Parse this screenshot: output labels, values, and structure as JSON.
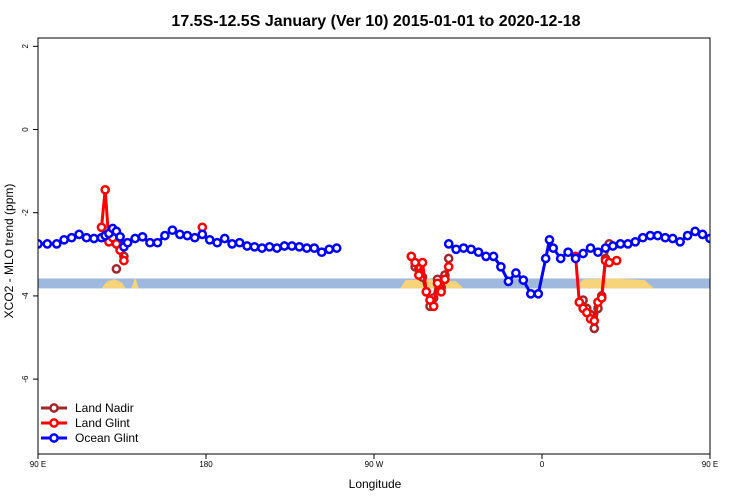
{
  "chart_data": {
    "type": "line",
    "title": "17.5S-12.5S January (Ver 10)   2015-01-01 to 2020-12-18",
    "xlabel": "Longitude",
    "ylabel": "XCO2 - MLO trend (ppm)",
    "xlim": [
      90,
      450
    ],
    "ylim": [
      -7.8,
      2.2
    ],
    "x_ticks": [
      {
        "value": 90,
        "label": "90 E"
      },
      {
        "value": 180,
        "label": "180"
      },
      {
        "value": 270,
        "label": "90 W"
      },
      {
        "value": 360,
        "label": "0"
      },
      {
        "value": 450,
        "label": "90 E"
      },
      {
        "value": 540,
        "label": "180"
      }
    ],
    "y_ticks": [
      {
        "value": 2,
        "label": "2"
      },
      {
        "value": 0,
        "label": "0"
      },
      {
        "value": -2,
        "label": "-2"
      },
      {
        "value": -4,
        "label": "-4"
      },
      {
        "value": -6,
        "label": "-6"
      }
    ],
    "grid": false,
    "legend_position": "bottom-left",
    "band": {
      "y_min": -3.82,
      "y_max": -3.58,
      "color": "#9fb8dd"
    },
    "land_fill": {
      "color": "#f7d37a",
      "base": -3.82,
      "regions": [
        [
          [
            124,
            -3.82
          ],
          [
            127,
            -3.65
          ],
          [
            131,
            -3.6
          ],
          [
            135,
            -3.68
          ],
          [
            137,
            -3.82
          ]
        ],
        [
          [
            140,
            -3.82
          ],
          [
            142,
            -3.55
          ],
          [
            144,
            -3.82
          ]
        ],
        [
          [
            284,
            -3.82
          ],
          [
            287,
            -3.62
          ],
          [
            300,
            -3.6
          ],
          [
            314,
            -3.65
          ],
          [
            318,
            -3.82
          ]
        ],
        [
          [
            378,
            -3.82
          ],
          [
            382,
            -3.6
          ],
          [
            400,
            -3.58
          ],
          [
            415,
            -3.62
          ],
          [
            420,
            -3.82
          ]
        ],
        [
          [
            484,
            -3.82
          ],
          [
            487,
            -3.65
          ],
          [
            491,
            -3.6
          ],
          [
            495,
            -3.68
          ],
          [
            497,
            -3.82
          ]
        ],
        [
          [
            500,
            -3.82
          ],
          [
            502,
            -3.55
          ],
          [
            504,
            -3.82
          ]
        ]
      ]
    },
    "series": [
      {
        "name": "Land Nadir",
        "color": "#a0282d",
        "segments": [
          [
            [
              128,
              -2.5
            ],
            [
              132,
              -2.7
            ],
            [
              134,
              -2.85
            ],
            [
              136,
              -3.05
            ]
          ],
          [
            [
              132,
              -3.35
            ]
          ],
          [
            [
              292,
              -3.3
            ],
            [
              294,
              -3.35
            ],
            [
              296,
              -3.55
            ],
            [
              298,
              -3.9
            ],
            [
              300,
              -4.25
            ],
            [
              302,
              -4.05
            ],
            [
              304,
              -3.6
            ],
            [
              306,
              -3.8
            ],
            [
              308,
              -3.5
            ],
            [
              310,
              -3.1
            ]
          ],
          [
            [
              382,
              -4.1
            ],
            [
              384,
              -4.3
            ],
            [
              386,
              -4.45
            ],
            [
              388,
              -4.78
            ],
            [
              390,
              -4.3
            ],
            [
              392,
              -4.0
            ],
            [
              394,
              -3.1
            ],
            [
              396,
              -2.75
            ]
          ],
          [
            [
              488,
              -2.5
            ],
            [
              492,
              -2.7
            ],
            [
              494,
              -2.85
            ],
            [
              496,
              -3.05
            ]
          ],
          [
            [
              492,
              -3.35
            ]
          ]
        ]
      },
      {
        "name": "Land Glint",
        "color": "#ff0000",
        "segments": [
          [
            [
              124,
              -2.35
            ],
            [
              126,
              -1.45
            ],
            [
              128,
              -2.7
            ],
            [
              130,
              -2.6
            ],
            [
              132,
              -2.75
            ],
            [
              134,
              -2.9
            ],
            [
              136,
              -3.15
            ]
          ],
          [
            [
              178,
              -2.35
            ]
          ],
          [
            [
              290,
              -3.05
            ],
            [
              292,
              -3.2
            ],
            [
              294,
              -3.5
            ],
            [
              296,
              -3.2
            ],
            [
              298,
              -3.9
            ],
            [
              300,
              -4.1
            ],
            [
              302,
              -4.25
            ],
            [
              304,
              -3.7
            ],
            [
              306,
              -3.9
            ],
            [
              308,
              -3.6
            ],
            [
              310,
              -3.3
            ]
          ],
          [
            [
              378,
              -3.05
            ],
            [
              380,
              -4.15
            ],
            [
              382,
              -4.3
            ],
            [
              384,
              -4.4
            ],
            [
              386,
              -4.55
            ],
            [
              388,
              -4.6
            ],
            [
              390,
              -4.15
            ],
            [
              392,
              -4.05
            ],
            [
              394,
              -3.15
            ],
            [
              396,
              -3.2
            ]
          ],
          [
            [
              400,
              -3.15
            ]
          ],
          [
            [
              484,
              -2.35
            ],
            [
              486,
              -1.45
            ],
            [
              488,
              -2.7
            ],
            [
              490,
              -2.6
            ],
            [
              492,
              -2.75
            ],
            [
              494,
              -2.9
            ],
            [
              496,
              -3.15
            ]
          ]
        ]
      },
      {
        "name": "Ocean Glint",
        "color": "#0000ff",
        "segments": [
          [
            [
              90,
              -2.75
            ],
            [
              95,
              -2.75
            ],
            [
              100,
              -2.75
            ],
            [
              104,
              -2.65
            ],
            [
              108,
              -2.6
            ],
            [
              112,
              -2.52
            ],
            [
              116,
              -2.6
            ],
            [
              120,
              -2.62
            ],
            [
              124,
              -2.6
            ],
            [
              126,
              -2.55
            ],
            [
              128,
              -2.5
            ],
            [
              130,
              -2.38
            ],
            [
              132,
              -2.45
            ],
            [
              134,
              -2.58
            ],
            [
              136,
              -2.82
            ],
            [
              138,
              -2.72
            ],
            [
              142,
              -2.62
            ],
            [
              146,
              -2.58
            ],
            [
              150,
              -2.72
            ],
            [
              154,
              -2.72
            ],
            [
              158,
              -2.55
            ],
            [
              162,
              -2.42
            ],
            [
              166,
              -2.52
            ],
            [
              170,
              -2.55
            ],
            [
              174,
              -2.6
            ],
            [
              178,
              -2.52
            ],
            [
              182,
              -2.65
            ],
            [
              186,
              -2.72
            ],
            [
              190,
              -2.62
            ],
            [
              194,
              -2.75
            ],
            [
              198,
              -2.72
            ],
            [
              202,
              -2.8
            ],
            [
              206,
              -2.82
            ],
            [
              210,
              -2.85
            ],
            [
              214,
              -2.82
            ],
            [
              218,
              -2.85
            ],
            [
              222,
              -2.8
            ],
            [
              226,
              -2.8
            ],
            [
              230,
              -2.82
            ],
            [
              234,
              -2.85
            ],
            [
              238,
              -2.85
            ],
            [
              242,
              -2.95
            ],
            [
              246,
              -2.88
            ],
            [
              250,
              -2.85
            ]
          ],
          [
            [
              310,
              -2.75
            ],
            [
              314,
              -2.88
            ],
            [
              318,
              -2.85
            ],
            [
              322,
              -2.88
            ],
            [
              326,
              -2.95
            ],
            [
              330,
              -3.05
            ],
            [
              334,
              -3.05
            ],
            [
              338,
              -3.3
            ],
            [
              342,
              -3.65
            ],
            [
              346,
              -3.45
            ],
            [
              350,
              -3.62
            ],
            [
              354,
              -3.95
            ],
            [
              358,
              -3.95
            ],
            [
              362,
              -3.1
            ],
            [
              364,
              -2.65
            ],
            [
              366,
              -2.85
            ],
            [
              370,
              -3.1
            ],
            [
              374,
              -2.95
            ],
            [
              378,
              -3.1
            ],
            [
              382,
              -2.98
            ],
            [
              386,
              -2.85
            ],
            [
              390,
              -2.95
            ],
            [
              394,
              -2.85
            ],
            [
              398,
              -2.8
            ],
            [
              402,
              -2.75
            ],
            [
              406,
              -2.75
            ],
            [
              410,
              -2.7
            ],
            [
              414,
              -2.6
            ],
            [
              418,
              -2.55
            ],
            [
              422,
              -2.55
            ],
            [
              426,
              -2.6
            ],
            [
              430,
              -2.62
            ],
            [
              434,
              -2.7
            ],
            [
              438,
              -2.55
            ],
            [
              442,
              -2.45
            ],
            [
              446,
              -2.52
            ],
            [
              450,
              -2.62
            ]
          ]
        ]
      }
    ]
  }
}
